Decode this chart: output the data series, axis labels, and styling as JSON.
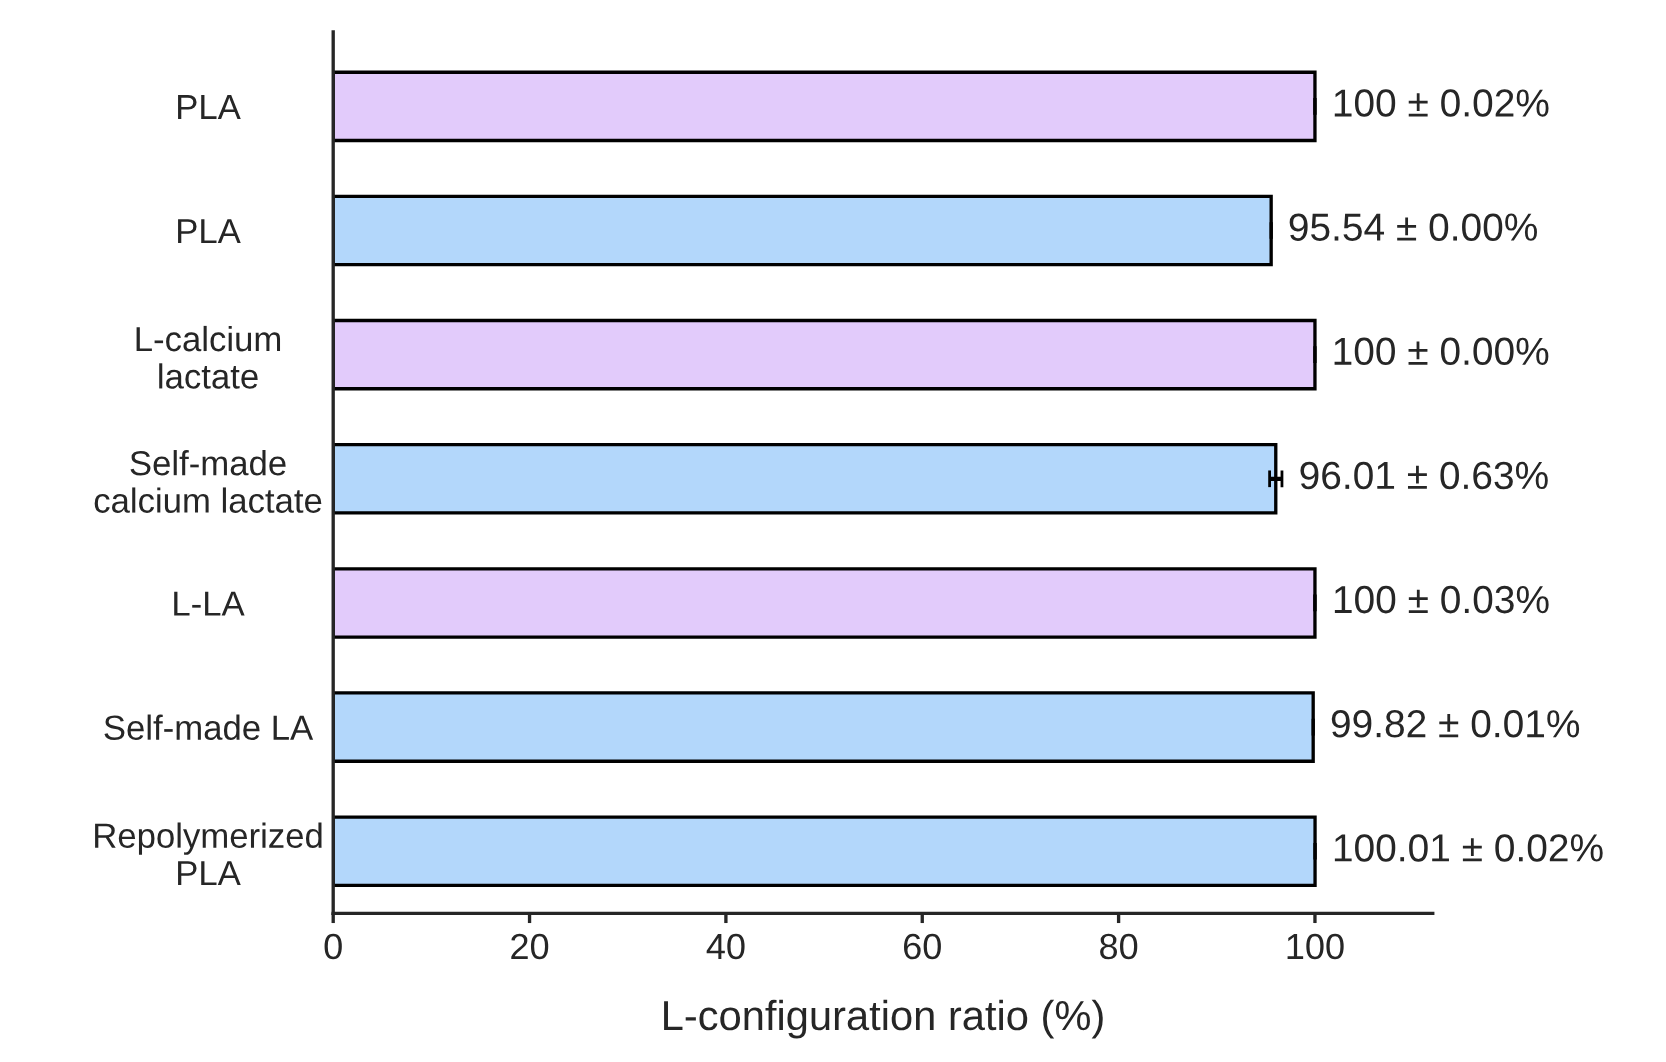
{
  "chart_data": {
    "type": "bar",
    "orientation": "horizontal",
    "xlabel": "L-configuration ratio (%)",
    "categories": [
      "PLA",
      "PLA",
      "L-calcium\nlactate",
      "Self-made\ncalcium lactate",
      "L-LA",
      "Self-made LA",
      "Repolymerized\nPLA"
    ],
    "values": [
      100,
      95.54,
      100,
      96.01,
      100,
      99.82,
      100.01
    ],
    "errors": [
      0.02,
      0.0,
      0.0,
      0.63,
      0.03,
      0.01,
      0.02
    ],
    "value_labels": [
      "100 ± 0.02%",
      "95.54 ± 0.00%",
      "100 ± 0.00%",
      "96.01 ± 0.63%",
      "100 ± 0.03%",
      "99.82 ± 0.01%",
      "100.01 ± 0.02%"
    ],
    "colors": [
      "#e2cbfb",
      "#b3d7fb",
      "#e2cbfb",
      "#b3d7fb",
      "#e2cbfb",
      "#b3d7fb",
      "#b3d7fb"
    ],
    "xlim": [
      0,
      112
    ],
    "xticks": [
      0,
      20,
      40,
      60,
      80,
      100
    ],
    "grid": false,
    "legend": false
  }
}
